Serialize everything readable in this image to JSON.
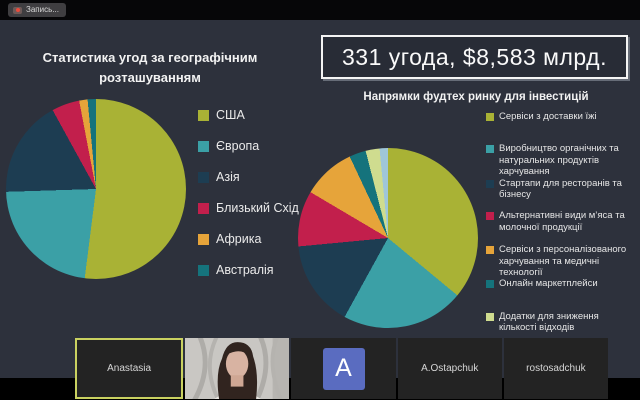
{
  "top_bar": {
    "recording_label": "Запись..."
  },
  "slide": {
    "background": "#2d313c",
    "deals_banner": "331 угода, $8,583 млрд."
  },
  "chart_data": [
    {
      "type": "pie",
      "title": "Статистика угод за географічним розташуванням",
      "legend_position": "right",
      "slices": [
        {
          "label": "США",
          "pct": 52,
          "color": "#a9b235"
        },
        {
          "label": "Європа",
          "pct": 22.5,
          "color": "#3ba0a6"
        },
        {
          "label": "Азія",
          "pct": 17.5,
          "color": "#1d3d52"
        },
        {
          "label": "Близький Схід",
          "pct": 5,
          "color": "#c21f4c"
        },
        {
          "label": "Африка",
          "pct": 1.5,
          "color": "#e6a43a"
        },
        {
          "label": "Австралія",
          "pct": 1.5,
          "color": "#15737c"
        }
      ]
    },
    {
      "type": "pie",
      "title": "Напрямки фудтех ринку для інвестицій",
      "legend_position": "right",
      "slices": [
        {
          "label": "Сервіси з доставки їжі",
          "pct": 36,
          "color": "#a9b235"
        },
        {
          "label": "Виробництво органічних та натуральних продуктів харчування",
          "pct": 22,
          "color": "#3ba0a6"
        },
        {
          "label": "Стартапи для ресторанів та бізнесу",
          "pct": 15.5,
          "color": "#1d3d52"
        },
        {
          "label": "Альтернативні види м’яса та молочної продукції",
          "pct": 10,
          "color": "#c21f4c"
        },
        {
          "label": "Сервіси з персоналізованого харчування та медичні технології",
          "pct": 9.5,
          "color": "#e6a43a"
        },
        {
          "label": "Онлайн маркетплейси",
          "pct": 3,
          "color": "#15737c"
        },
        {
          "label": "Додатки для зниження кількості відходів",
          "pct": 2.5,
          "color": "#cfdc8f"
        },
        {
          "label": "",
          "pct": 1.5,
          "color": "#9fc6d8"
        }
      ]
    }
  ],
  "filmstrip": {
    "participants": [
      {
        "name": "Anastasia",
        "type": "name",
        "active": true
      },
      {
        "name": "",
        "type": "video",
        "active": false
      },
      {
        "name": "",
        "type": "avatar",
        "avatar_letter": "A",
        "avatar_color": "#5a6cc0",
        "active": false
      },
      {
        "name": "A.Ostapchuk",
        "type": "name",
        "active": false
      },
      {
        "name": "rostosadchuk",
        "type": "name",
        "active": false
      }
    ]
  }
}
